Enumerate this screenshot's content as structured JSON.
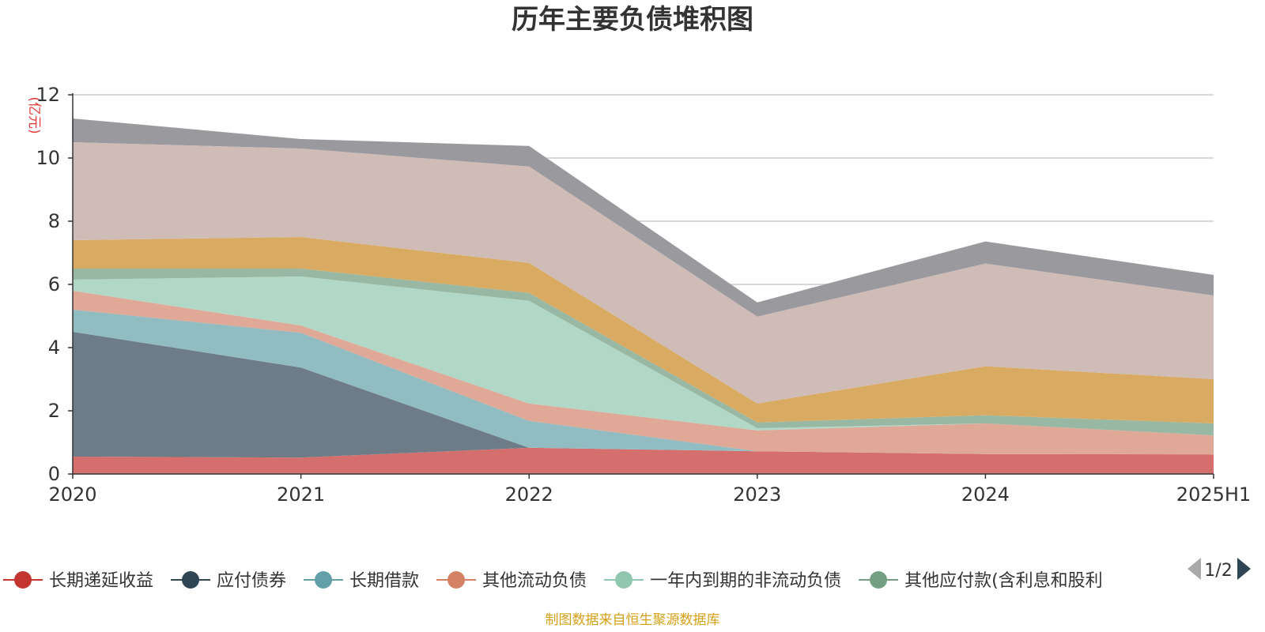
{
  "chart_data": {
    "type": "area",
    "title": "历年主要负债堆积图",
    "y_unit": "(亿元)",
    "categories": [
      "2020",
      "2021",
      "2022",
      "2023",
      "2024",
      "2025H1"
    ],
    "ylim": [
      0,
      12
    ],
    "yticks": [
      0,
      2,
      4,
      6,
      8,
      10,
      12
    ],
    "stacked": true,
    "grid": true,
    "legend_position": "bottom",
    "series": [
      {
        "name": "长期递延收益",
        "color": "#c23531",
        "fill": "#d46f6e",
        "values": [
          0.55,
          0.52,
          0.83,
          0.72,
          0.63,
          0.62
        ],
        "in_legend": true
      },
      {
        "name": "应付债券",
        "color": "#2f4554",
        "fill": "#6e7c87",
        "values": [
          3.95,
          2.85,
          0.0,
          0.0,
          0.0,
          0.0
        ],
        "in_legend": true
      },
      {
        "name": "长期借款",
        "color": "#61a0a8",
        "fill": "#90bcc2",
        "values": [
          0.7,
          1.1,
          0.85,
          0.0,
          0.0,
          0.0
        ],
        "in_legend": true
      },
      {
        "name": "其他流动负债",
        "color": "#d48265",
        "fill": "#e0a897",
        "values": [
          0.6,
          0.23,
          0.55,
          0.66,
          0.97,
          0.6
        ],
        "in_legend": true
      },
      {
        "name": "一年内到期的非流动负债",
        "color": "#91c7ae",
        "fill": "#b1d8c6",
        "values": [
          0.35,
          1.55,
          3.25,
          0.07,
          0.0,
          0.0
        ],
        "in_legend": true
      },
      {
        "name": "其他应付款(含利息和股利",
        "color": "#749f83",
        "fill": "#98b8a4",
        "values": [
          0.35,
          0.25,
          0.25,
          0.18,
          0.26,
          0.38
        ],
        "in_legend": true
      },
      {
        "name": "",
        "color": "#ca8622",
        "fill": "#d9aa62",
        "values": [
          0.9,
          1.0,
          0.95,
          0.6,
          1.55,
          1.4
        ],
        "in_legend": false
      },
      {
        "name": "",
        "color": "#bda29a",
        "fill": "#cfbcb7",
        "values": [
          3.1,
          2.8,
          3.05,
          2.75,
          3.25,
          2.65
        ],
        "in_legend": false
      },
      {
        "name": "",
        "color": "#6e7074",
        "fill": "#9a9a9e",
        "values": [
          0.75,
          0.3,
          0.65,
          0.45,
          0.7,
          0.65
        ],
        "in_legend": false
      }
    ]
  },
  "legend": {
    "page_indicator": "1/2",
    "prev_icon": "triangle-left-icon",
    "next_icon": "triangle-right-icon"
  },
  "footer": {
    "source": "制图数据来自恒生聚源数据库"
  }
}
